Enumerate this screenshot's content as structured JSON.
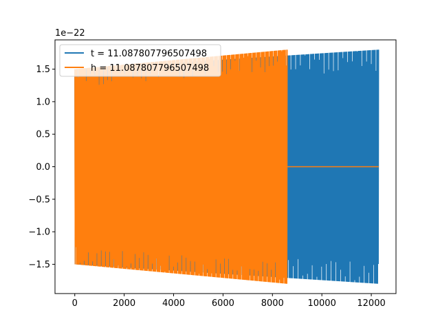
{
  "chart_data": {
    "type": "line",
    "title": "",
    "xlabel": "",
    "ylabel": "",
    "y_offset_label": "1e−22",
    "xlim": [
      -800,
      13000
    ],
    "ylim": [
      -1.95,
      1.95
    ],
    "x_ticks": [
      0,
      2000,
      4000,
      6000,
      8000,
      10000,
      12000
    ],
    "x_tick_labels": [
      "0",
      "2000",
      "4000",
      "6000",
      "8000",
      "10000",
      "12000"
    ],
    "y_ticks": [
      -1.5,
      -1.0,
      -0.5,
      0.0,
      0.5,
      1.0,
      1.5
    ],
    "y_tick_labels": [
      "−1.5",
      "−1.0",
      "−0.5",
      "0.0",
      "0.5",
      "1.0",
      "1.5"
    ],
    "grid": false,
    "legend_position": "top-left",
    "series": [
      {
        "name": "t = 11.087807796507498",
        "color": "#1f77b4",
        "x_range": [
          0,
          12300
        ],
        "envelope_start": 1.5,
        "envelope_end": 1.8,
        "values_shown": "dense oscillation between ±envelope"
      },
      {
        "name": "h = 11.087807796507498",
        "color": "#ff7f0e",
        "x_range": [
          0,
          12300
        ],
        "oscillation_end_x": 8600,
        "envelope_start": 1.5,
        "envelope_end": 1.8,
        "flat_value_after": 0.0
      }
    ]
  }
}
